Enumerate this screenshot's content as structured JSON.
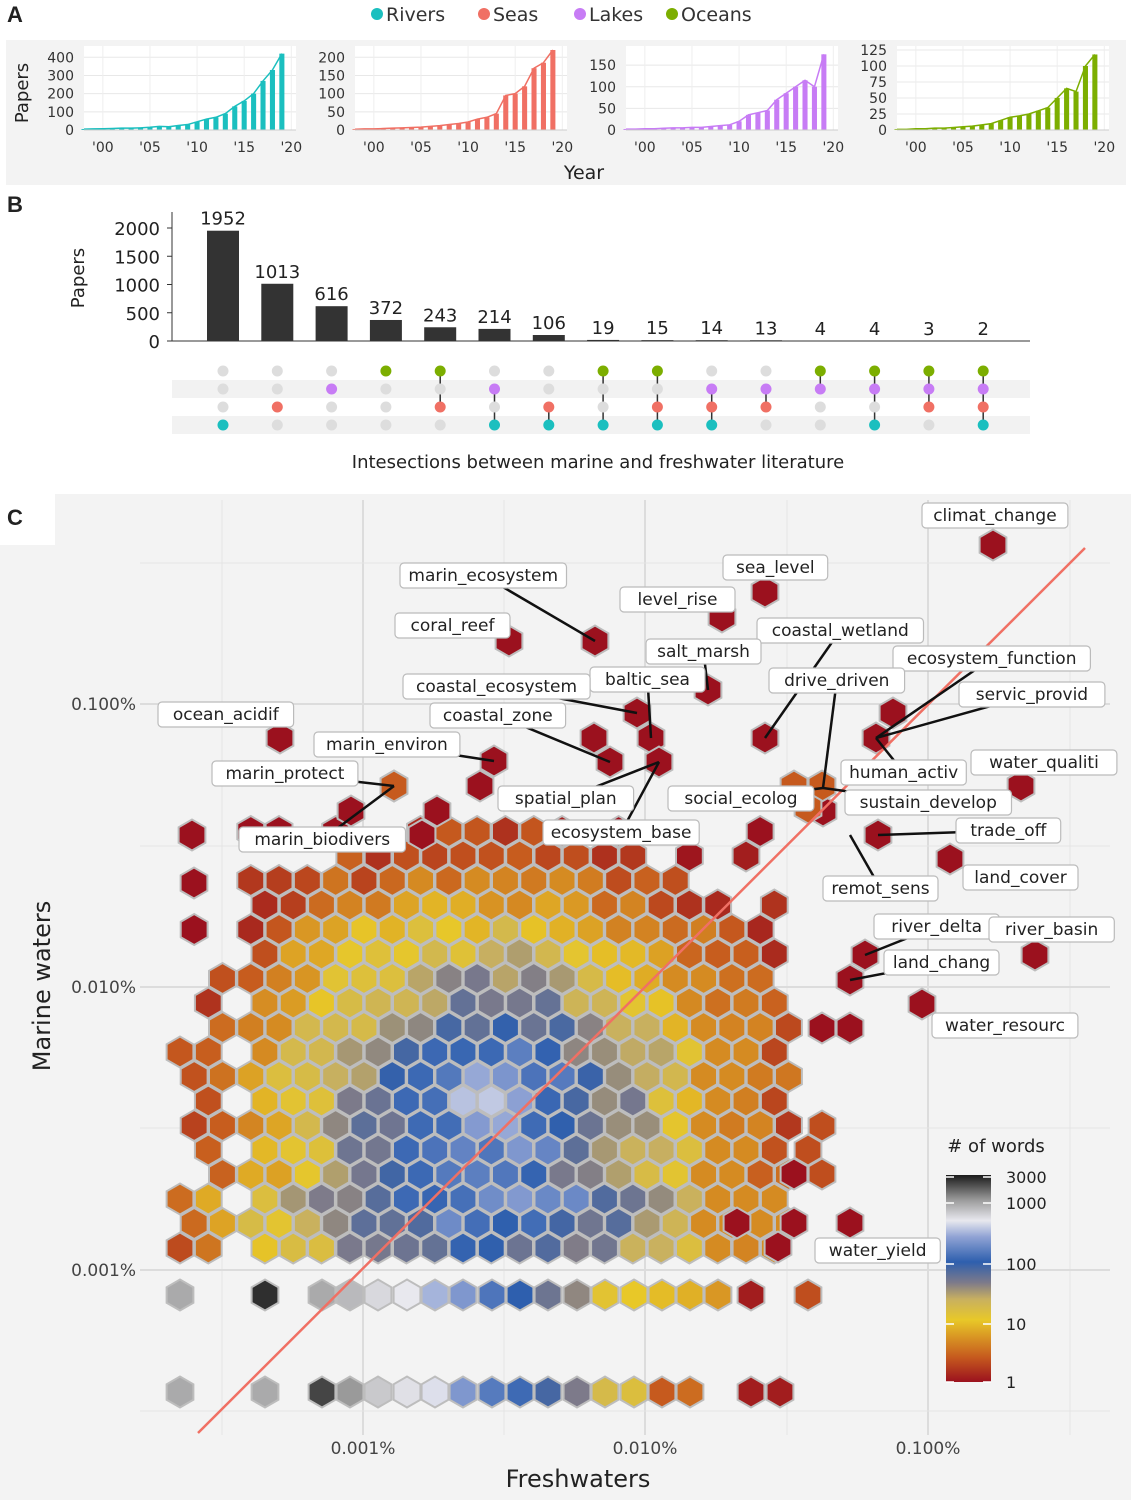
{
  "panels": {
    "a": "A",
    "b": "B",
    "c": "C"
  },
  "colors": {
    "rivers": "#1bbfbf",
    "seas": "#f07064",
    "lakes": "#c77cf5",
    "oceans": "#7cae00",
    "bar": "#333333",
    "diag": "#f07064"
  },
  "chart_data": [
    {
      "type": "bar",
      "title": "",
      "legend": [
        {
          "name": "Rivers",
          "color": "#1bbfbf"
        },
        {
          "name": "Seas",
          "color": "#f07064"
        },
        {
          "name": "Lakes",
          "color": "#c77cf5"
        },
        {
          "name": "Oceans",
          "color": "#7cae00"
        }
      ],
      "ylabel": "Papers",
      "xlabel": "Year",
      "xticks": [
        "'00",
        "'05",
        "'10",
        "'15",
        "'20"
      ],
      "years": [
        1998,
        1999,
        2000,
        2001,
        2002,
        2003,
        2004,
        2005,
        2006,
        2007,
        2008,
        2009,
        2010,
        2011,
        2012,
        2013,
        2014,
        2015,
        2016,
        2017,
        2018,
        2019
      ],
      "series": [
        {
          "name": "Rivers",
          "color": "#1bbfbf",
          "ylim": [
            0,
            440
          ],
          "yticks": [
            0,
            100,
            200,
            300,
            400
          ],
          "values": [
            5,
            6,
            7,
            8,
            10,
            10,
            12,
            15,
            20,
            18,
            25,
            30,
            45,
            60,
            70,
            90,
            130,
            160,
            200,
            270,
            330,
            420
          ]
        },
        {
          "name": "Seas",
          "color": "#f07064",
          "ylim": [
            0,
            220
          ],
          "yticks": [
            0,
            50,
            100,
            150,
            200
          ],
          "values": [
            2,
            3,
            3,
            4,
            5,
            6,
            7,
            8,
            10,
            12,
            15,
            18,
            22,
            30,
            35,
            45,
            95,
            100,
            120,
            170,
            185,
            220
          ]
        },
        {
          "name": "Lakes",
          "color": "#c77cf5",
          "ylim": [
            0,
            185
          ],
          "yticks": [
            0,
            50,
            100,
            150
          ],
          "values": [
            2,
            2,
            3,
            3,
            4,
            5,
            5,
            6,
            6,
            8,
            10,
            12,
            20,
            35,
            40,
            45,
            70,
            85,
            100,
            115,
            100,
            175
          ]
        },
        {
          "name": "Oceans",
          "color": "#7cae00",
          "ylim": [
            0,
            125
          ],
          "yticks": [
            0,
            25,
            50,
            75,
            100,
            125
          ],
          "values": [
            1,
            1,
            2,
            2,
            3,
            3,
            4,
            5,
            6,
            8,
            10,
            15,
            20,
            22,
            25,
            30,
            35,
            50,
            65,
            60,
            100,
            118
          ]
        }
      ]
    },
    {
      "type": "bar",
      "subtype": "upset",
      "ylabel": "Papers",
      "xlabel": "Intesections between marine and freshwater literature",
      "ylim": [
        0,
        2200
      ],
      "yticks": [
        0,
        500,
        1000,
        1500,
        2000
      ],
      "sets": [
        "Oceans",
        "Lakes",
        "Seas",
        "Rivers"
      ],
      "values": [
        1952,
        1013,
        616,
        372,
        243,
        214,
        106,
        19,
        15,
        14,
        13,
        4,
        4,
        3,
        2
      ],
      "value_labels": [
        "1952",
        "1013",
        "616",
        "372",
        "243",
        "214",
        "106",
        "19",
        "15",
        "14",
        "13",
        "4",
        "4",
        "3",
        "2"
      ],
      "membership": [
        [
          0,
          0,
          0,
          1
        ],
        [
          0,
          0,
          1,
          0
        ],
        [
          0,
          1,
          0,
          0
        ],
        [
          1,
          0,
          0,
          0
        ],
        [
          1,
          0,
          1,
          0
        ],
        [
          0,
          1,
          0,
          1
        ],
        [
          0,
          0,
          1,
          1
        ],
        [
          1,
          0,
          0,
          1
        ],
        [
          1,
          0,
          1,
          1
        ],
        [
          0,
          1,
          1,
          1
        ],
        [
          0,
          1,
          1,
          0
        ],
        [
          1,
          1,
          0,
          0
        ],
        [
          1,
          1,
          0,
          1
        ],
        [
          1,
          1,
          1,
          0
        ],
        [
          1,
          1,
          1,
          1
        ]
      ]
    },
    {
      "type": "heatmap",
      "subtype": "hexbin",
      "xlabel": "Freshwaters",
      "ylabel": "Marine waters",
      "xticks": [
        "0.001%",
        "0.010%",
        "0.100%"
      ],
      "yticks": [
        "0.001%",
        "0.010%",
        "0.100%"
      ],
      "log_axes": true,
      "legend_title": "# of words",
      "colorbar_ticks": [
        "3000",
        "1000",
        "100",
        "10",
        "1"
      ],
      "reference_line": "y = x",
      "annotations": [
        "climat_change",
        "sea_level",
        "marin_ecosystem",
        "level_rise",
        "coral_reef",
        "coastal_wetland",
        "salt_marsh",
        "ecosystem_function",
        "baltic_sea",
        "coastal_ecosystem",
        "drive_driven",
        "servic_provid",
        "ocean_acidif",
        "coastal_zone",
        "marin_environ",
        "human_activ",
        "water_qualiti",
        "marin_protect",
        "sustain_develop",
        "social_ecolog",
        "spatial_plan",
        "trade_off",
        "marin_biodivers",
        "ecosystem_base",
        "land_cover",
        "remot_sens",
        "river_delta",
        "river_basin",
        "land_chang",
        "water_resourc",
        "water_yield"
      ]
    }
  ]
}
